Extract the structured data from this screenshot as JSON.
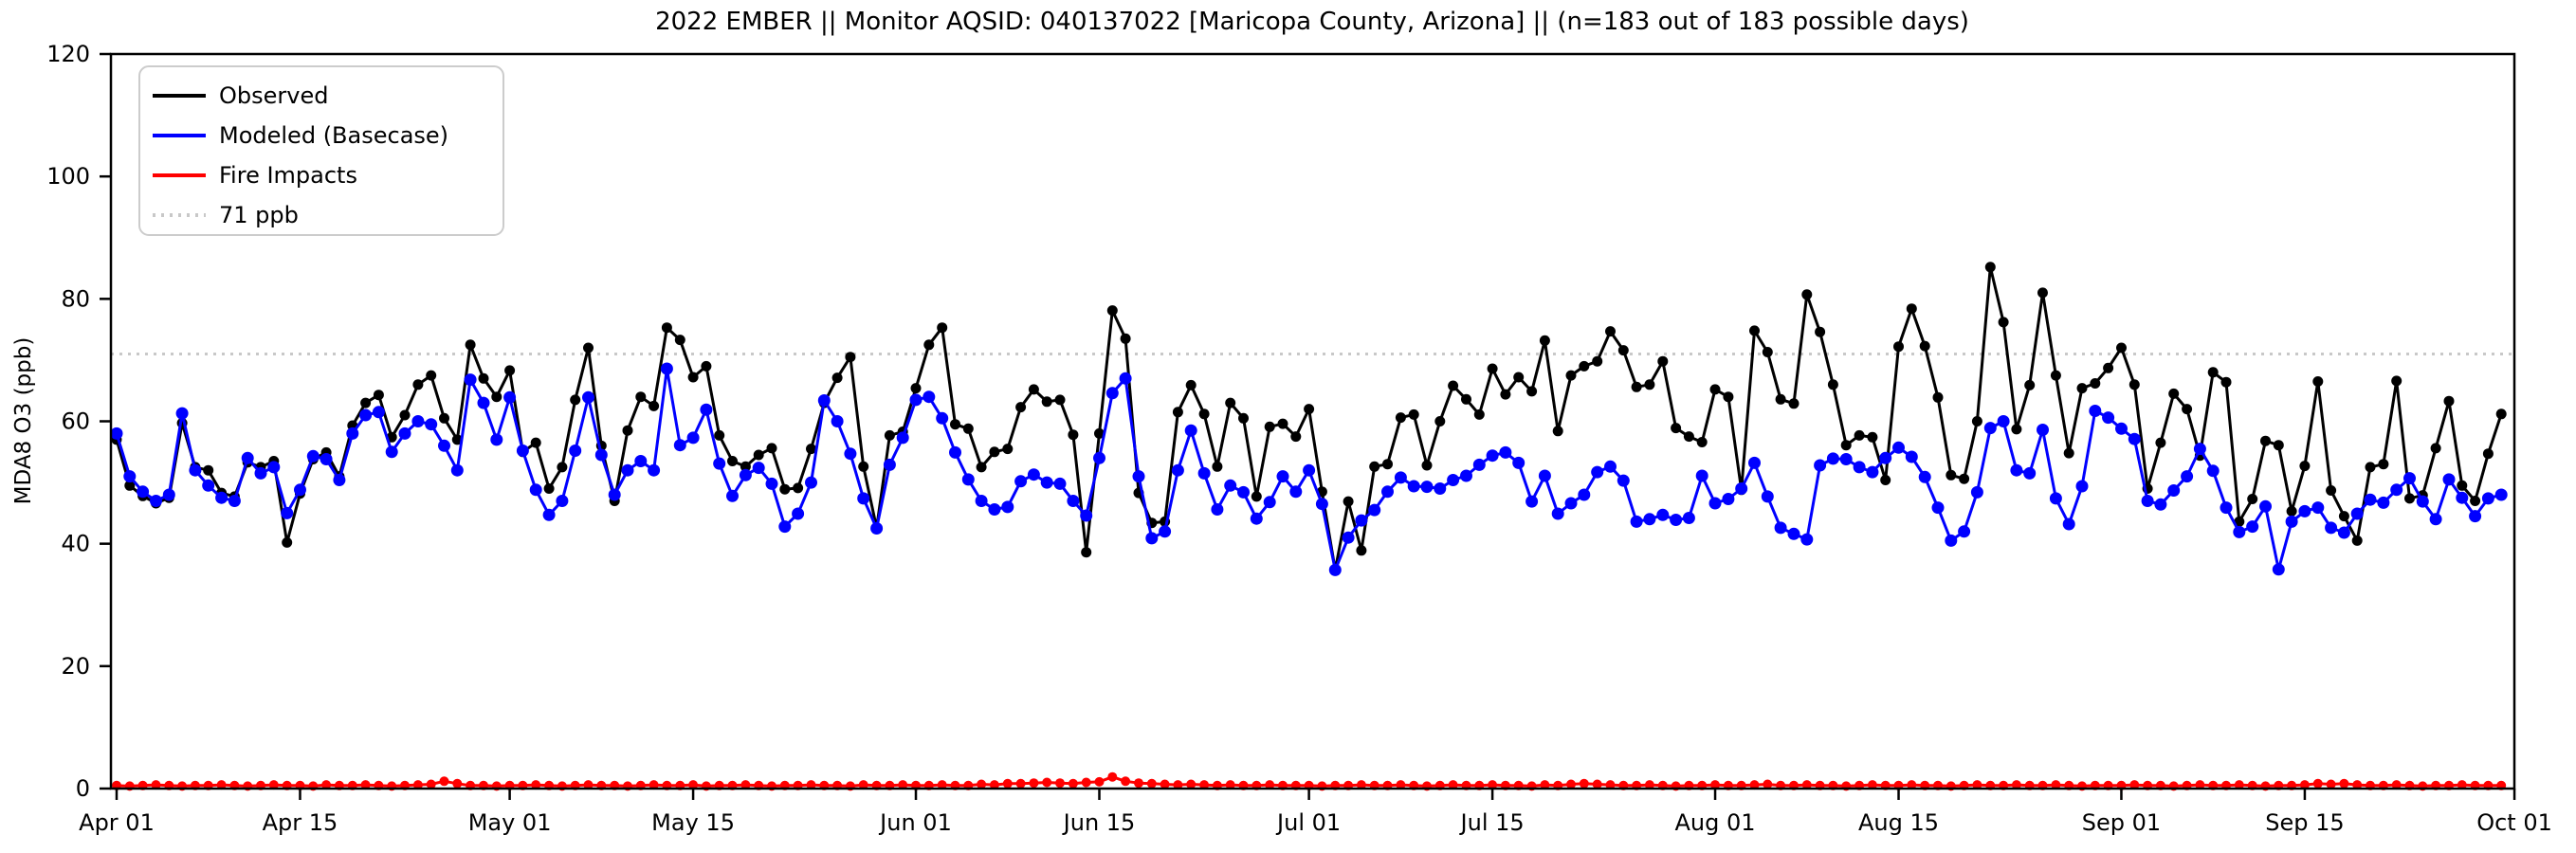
{
  "chart_data": {
    "type": "line",
    "title": "2022 EMBER || Monitor AQSID: 040137022 [Maricopa County, Arizona] || (n=183 out of 183 possible days)",
    "xlabel": "",
    "ylabel": "MDA8 O3 (ppb)",
    "ylim": [
      0,
      120
    ],
    "yticks": [
      0,
      20,
      40,
      60,
      80,
      100,
      120
    ],
    "n_days": 183,
    "x_range_labels": [
      "Apr 01",
      "Sep 30"
    ],
    "xticks": [
      {
        "label": "Apr 01",
        "day": 1
      },
      {
        "label": "Apr 15",
        "day": 15
      },
      {
        "label": "May 01",
        "day": 31
      },
      {
        "label": "May 15",
        "day": 45
      },
      {
        "label": "Jun 01",
        "day": 62
      },
      {
        "label": "Jun 15",
        "day": 76
      },
      {
        "label": "Jul 01",
        "day": 92
      },
      {
        "label": "Jul 15",
        "day": 106
      },
      {
        "label": "Aug 01",
        "day": 123
      },
      {
        "label": "Aug 15",
        "day": 137
      },
      {
        "label": "Sep 01",
        "day": 154
      },
      {
        "label": "Sep 15",
        "day": 168
      },
      {
        "label": "Oct 01",
        "day": 184
      }
    ],
    "threshold": {
      "value": 71,
      "label": "71 ppb",
      "color": "#c8c8c8",
      "style": "dotted"
    },
    "legend": {
      "position": "upper-left",
      "entries": [
        {
          "label": "Observed",
          "color": "#000000",
          "style": "solid"
        },
        {
          "label": "Modeled (Basecase)",
          "color": "#0000ff",
          "style": "solid"
        },
        {
          "label": "Fire Impacts",
          "color": "#ff0000",
          "style": "solid"
        },
        {
          "label": "71 ppb",
          "color": "#c8c8c8",
          "style": "dotted"
        }
      ]
    },
    "series": [
      {
        "name": "Observed",
        "color": "#000000",
        "values": [
          57,
          49.5,
          47.8,
          46.6,
          47.5,
          59.7,
          52.5,
          52,
          48.3,
          47.7,
          53.3,
          52.5,
          53.5,
          40.2,
          48.2,
          53.8,
          54.9,
          51,
          59.3,
          63,
          64.3,
          57.4,
          61,
          66,
          67.5,
          60.5,
          57,
          72.5,
          67,
          64,
          68.3,
          55,
          56.5,
          49,
          52.5,
          63.5,
          72,
          56,
          47,
          58.5,
          64,
          62.5,
          75.3,
          73.3,
          67.2,
          69,
          57.7,
          53.5,
          52.6,
          54.5,
          55.6,
          48.9,
          49.1,
          55.5,
          63,
          67.1,
          70.5,
          52.6,
          42.6,
          57.7,
          58.3,
          65.4,
          72.5,
          75.3,
          59.5,
          58.8,
          52.5,
          55,
          55.5,
          62.3,
          65.2,
          63.2,
          63.5,
          57.8,
          38.6,
          58,
          78.1,
          73.5,
          48.3,
          43.4,
          43.6,
          61.5,
          65.9,
          61.2,
          52.6,
          63,
          60.5,
          47.7,
          59.1,
          59.6,
          57.5,
          62,
          48.5,
          35.7,
          46.9,
          38.9,
          52.6,
          53,
          60.6,
          61.1,
          52.8,
          60,
          65.8,
          63.6,
          61.1,
          68.6,
          64.4,
          67.2,
          64.9,
          73.2,
          58.4,
          67.5,
          69,
          69.8,
          74.7,
          71.6,
          65.6,
          66,
          69.8,
          58.9,
          57.5,
          56.6,
          65.2,
          64,
          48.8,
          74.8,
          71.3,
          63.6,
          62.9,
          80.7,
          74.6,
          66,
          56.1,
          57.7,
          57.4,
          50.4,
          72.2,
          78.4,
          72.3,
          63.9,
          51.2,
          50.6,
          60,
          85.2,
          76.2,
          58.7,
          65.9,
          81,
          67.5,
          54.8,
          65.4,
          66.2,
          68.7,
          72,
          66,
          49,
          56.5,
          64.5,
          62,
          54.4,
          68,
          66.4,
          43.6,
          47.3,
          56.8,
          56.1,
          45.3,
          52.7,
          66.5,
          48.7,
          44.5,
          40.5,
          52.5,
          53,
          66.6,
          47.4,
          47.9,
          55.6,
          63.3,
          49.5,
          47,
          54.7,
          61.2
        ]
      },
      {
        "name": "Modeled (Basecase)",
        "color": "#0000ff",
        "values": [
          58,
          51,
          48.5,
          47,
          48,
          61.3,
          52,
          49.5,
          47.5,
          47,
          54,
          51.5,
          52.5,
          45,
          48.8,
          54.3,
          53.8,
          50.4,
          58,
          61,
          61.5,
          55,
          58,
          60,
          59.5,
          56,
          52,
          66.8,
          63,
          57,
          63.9,
          55.2,
          48.8,
          44.7,
          47,
          55.2,
          63.9,
          54.5,
          48,
          52,
          53.5,
          52,
          68.6,
          56.1,
          57.3,
          61.9,
          53.1,
          47.8,
          51.2,
          52.4,
          49.8,
          42.8,
          44.9,
          50,
          63.4,
          60,
          54.7,
          47.4,
          42.5,
          52.9,
          57.3,
          63.5,
          64,
          60.5,
          54.9,
          50.5,
          47,
          45.6,
          46,
          50.2,
          51.3,
          50,
          49.8,
          47,
          44.6,
          54,
          64.6,
          67,
          51,
          40.9,
          42,
          52,
          58.5,
          51.5,
          45.6,
          49.5,
          48.4,
          44.1,
          46.8,
          51,
          48.5,
          52,
          46.5,
          35.7,
          41,
          43.8,
          45.5,
          48.5,
          50.8,
          49.4,
          49.3,
          49,
          50.4,
          51.1,
          52.9,
          54.4,
          54.9,
          53.2,
          46.9,
          51.1,
          44.9,
          46.6,
          48,
          51.7,
          52.6,
          50.3,
          43.6,
          44,
          44.7,
          43.9,
          44.2,
          51.1,
          46.6,
          47.3,
          49,
          53.2,
          47.7,
          42.6,
          41.6,
          40.7,
          52.8,
          53.9,
          53.8,
          52.5,
          51.7,
          54,
          55.7,
          54.2,
          50.9,
          45.9,
          40.5,
          42,
          48.4,
          58.9,
          60,
          52,
          51.5,
          58.6,
          47.4,
          43.2,
          49.4,
          61.7,
          60.6,
          58.8,
          57.1,
          47,
          46.4,
          48.7,
          51,
          55.5,
          51.9,
          45.9,
          41.9,
          42.8,
          46.1,
          35.8,
          43.6,
          45.3,
          45.9,
          42.6,
          41.8,
          44.9,
          47.2,
          46.7,
          48.8,
          50.7,
          46.9,
          44,
          50.5,
          47.5,
          44.5,
          47.4,
          48
        ]
      },
      {
        "name": "Fire Impacts",
        "color": "#ff0000",
        "values": [
          0.5,
          0.4,
          0.5,
          0.6,
          0.5,
          0.4,
          0.5,
          0.5,
          0.6,
          0.5,
          0.4,
          0.5,
          0.6,
          0.5,
          0.5,
          0.4,
          0.6,
          0.5,
          0.5,
          0.6,
          0.5,
          0.4,
          0.5,
          0.6,
          0.7,
          1.2,
          0.8,
          0.5,
          0.5,
          0.4,
          0.5,
          0.5,
          0.6,
          0.5,
          0.4,
          0.5,
          0.6,
          0.5,
          0.5,
          0.4,
          0.5,
          0.6,
          0.5,
          0.5,
          0.6,
          0.4,
          0.5,
          0.5,
          0.6,
          0.5,
          0.4,
          0.5,
          0.5,
          0.6,
          0.5,
          0.5,
          0.4,
          0.6,
          0.5,
          0.5,
          0.6,
          0.5,
          0.5,
          0.6,
          0.5,
          0.5,
          0.7,
          0.6,
          0.8,
          0.8,
          0.9,
          1.0,
          0.9,
          0.8,
          1.0,
          1.1,
          1.9,
          1.2,
          0.9,
          0.8,
          0.7,
          0.6,
          0.7,
          0.6,
          0.5,
          0.6,
          0.5,
          0.5,
          0.6,
          0.5,
          0.5,
          0.5,
          0.4,
          0.5,
          0.5,
          0.6,
          0.5,
          0.5,
          0.6,
          0.5,
          0.4,
          0.5,
          0.6,
          0.5,
          0.5,
          0.6,
          0.5,
          0.5,
          0.4,
          0.6,
          0.5,
          0.7,
          0.8,
          0.7,
          0.6,
          0.5,
          0.5,
          0.6,
          0.5,
          0.4,
          0.5,
          0.5,
          0.6,
          0.5,
          0.5,
          0.6,
          0.7,
          0.5,
          0.5,
          0.6,
          0.5,
          0.5,
          0.4,
          0.5,
          0.6,
          0.5,
          0.5,
          0.6,
          0.5,
          0.5,
          0.4,
          0.5,
          0.6,
          0.5,
          0.5,
          0.6,
          0.5,
          0.5,
          0.6,
          0.5,
          0.4,
          0.5,
          0.5,
          0.5,
          0.6,
          0.5,
          0.5,
          0.4,
          0.5,
          0.6,
          0.5,
          0.5,
          0.6,
          0.5,
          0.4,
          0.5,
          0.5,
          0.6,
          0.8,
          0.7,
          0.8,
          0.6,
          0.5,
          0.5,
          0.6,
          0.5,
          0.4,
          0.5,
          0.5,
          0.6,
          0.5,
          0.5,
          0.5
        ]
      }
    ],
    "layout": {
      "plot_left": 117,
      "plot_right": 2652,
      "plot_top": 57,
      "plot_bottom": 832,
      "x_day1": 123,
      "x_step": 13.82,
      "grid": false,
      "background": "#ffffff"
    }
  }
}
